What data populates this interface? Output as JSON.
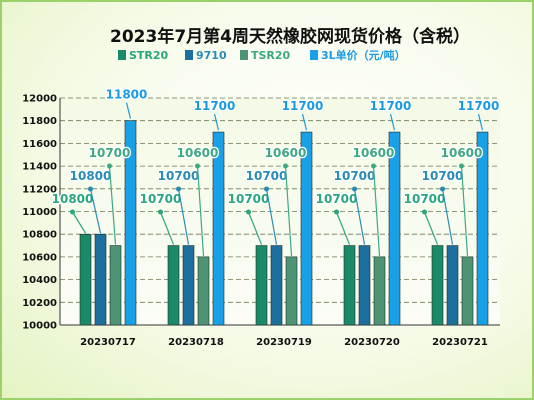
{
  "chart_data": {
    "type": "bar",
    "title": "2023年7月第4周天然橡胶网现货价格（含税）",
    "categories": [
      "20230717",
      "20230718",
      "20230719",
      "20230720",
      "20230721"
    ],
    "series": [
      {
        "name": "STR20",
        "values": [
          10800,
          10700,
          10700,
          10700,
          10700
        ]
      },
      {
        "name": "9710",
        "values": [
          10800,
          10700,
          10700,
          10700,
          10700
        ]
      },
      {
        "name": "TSR20",
        "values": [
          10700,
          10600,
          10600,
          10600,
          10600
        ]
      },
      {
        "name": "3L单价（元/吨）",
        "values": [
          11800,
          11700,
          11700,
          11700,
          11700
        ]
      }
    ],
    "yticks": [
      10000,
      10200,
      10400,
      10600,
      10800,
      11000,
      11200,
      11400,
      11600,
      11800,
      12000
    ],
    "ylim": [
      10000,
      12000
    ],
    "xlabel": "",
    "ylabel": "",
    "legend_position": "top",
    "grid": true,
    "colors": [
      "#1a8a68",
      "#1d6f9e",
      "#4e9474",
      "#1aa0e6"
    ],
    "label_colors": [
      "#2ba57e",
      "#2a8cb4",
      "#3ea882",
      "#1a9be0"
    ]
  }
}
